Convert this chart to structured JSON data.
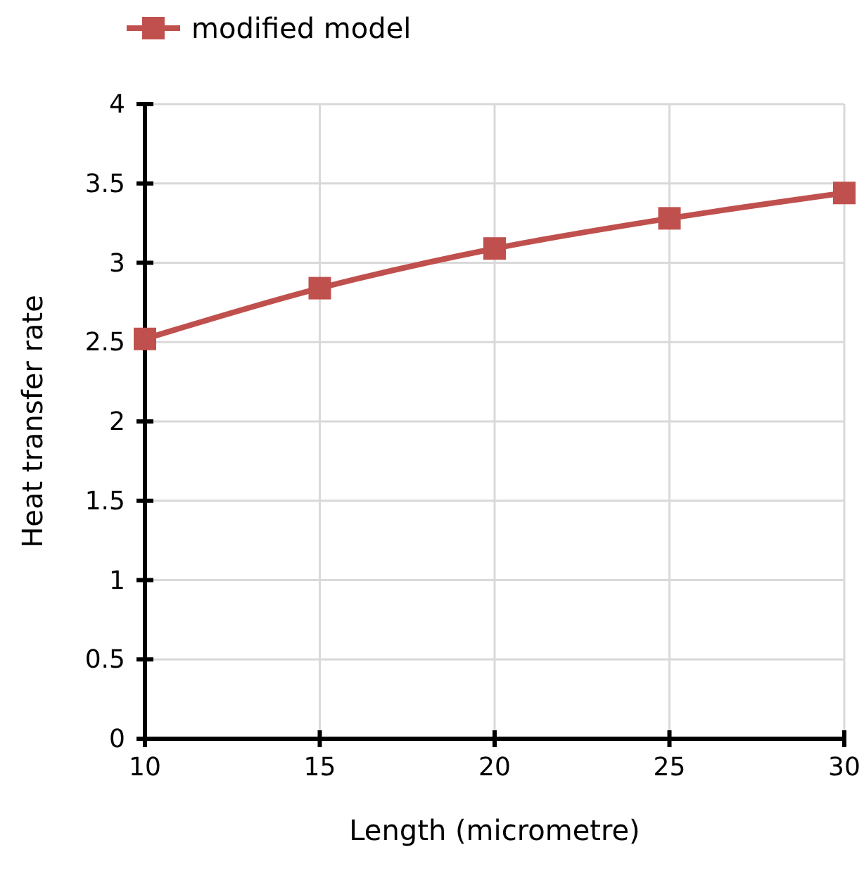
{
  "chart_data": {
    "type": "line",
    "xlabel": "Length (micrometre)",
    "ylabel": "Heat transfer rate",
    "x": [
      10,
      15,
      20,
      25,
      30
    ],
    "series": [
      {
        "name": "modified model",
        "color": "#c0504d",
        "values": [
          2.52,
          2.84,
          3.09,
          3.28,
          3.44
        ]
      }
    ],
    "xlim": [
      10,
      30
    ],
    "xticks": [
      10,
      15,
      20,
      25,
      30
    ],
    "ylim": [
      0,
      4
    ],
    "yticks": [
      0,
      0.5,
      1,
      1.5,
      2,
      2.5,
      3,
      3.5,
      4
    ],
    "grid": true,
    "legend": "top left",
    "marker": "square",
    "line_style": "solid"
  }
}
